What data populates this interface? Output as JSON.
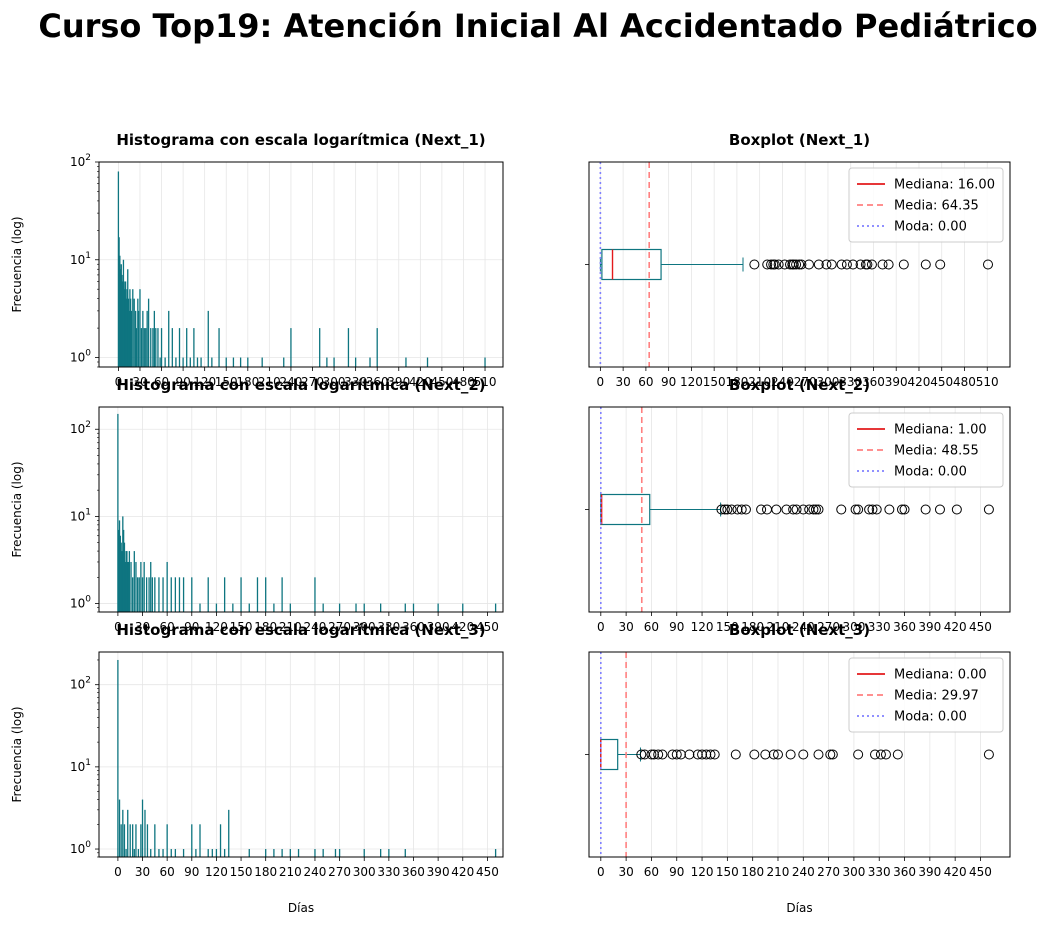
{
  "figure": {
    "title": "Curso Top19: Atención Inicial Al Accidentado Pediátrico"
  },
  "colors": {
    "bar": "#0e7580",
    "box": "#0e7580",
    "median": "#e31a1c",
    "mean": "#ff8080",
    "mode": "#8080ff",
    "grid": "#e6e6e6"
  },
  "chart_data": [
    {
      "type": "bar",
      "title": "Histograma con escala logarítmica (Next_1)",
      "xlabel": "",
      "ylabel": "Frecuencia (log)",
      "yscale": "log",
      "ylim": [
        0.8,
        100
      ],
      "yticks": [
        1,
        10,
        100
      ],
      "xlim": [
        -27,
        535
      ],
      "xticks": [
        0,
        30,
        60,
        90,
        120,
        150,
        180,
        210,
        240,
        270,
        300,
        330,
        360,
        390,
        420,
        450,
        480,
        510
      ],
      "grid": true,
      "bins": {
        "x": [
          0,
          1,
          2,
          3,
          4,
          5,
          6,
          7,
          8,
          9,
          10,
          11,
          12,
          13,
          14,
          15,
          16,
          17,
          18,
          20,
          22,
          24,
          25,
          27,
          28,
          30,
          32,
          34,
          36,
          38,
          40,
          42,
          45,
          48,
          50,
          52,
          55,
          58,
          60,
          65,
          70,
          75,
          80,
          85,
          90,
          95,
          100,
          105,
          110,
          115,
          125,
          130,
          140,
          150,
          160,
          170,
          180,
          200,
          230,
          240,
          280,
          290,
          300,
          320,
          330,
          350,
          360,
          400,
          430,
          510
        ],
        "values": [
          80,
          17,
          11,
          8,
          9,
          7,
          6,
          10,
          6,
          5,
          6,
          4,
          5,
          8,
          4,
          3,
          5,
          4,
          3,
          5,
          4,
          3,
          2,
          4,
          3,
          5,
          2,
          3,
          2,
          2,
          3,
          4,
          2,
          2,
          3,
          2,
          2,
          1,
          2,
          1,
          3,
          2,
          1,
          2,
          1,
          2,
          1,
          2,
          1,
          1,
          3,
          1,
          2,
          1,
          1,
          1,
          1,
          1,
          1,
          2,
          2,
          1,
          1,
          2,
          1,
          1,
          2,
          1,
          1,
          1
        ]
      }
    },
    {
      "type": "boxplot",
      "title": "Boxplot (Next_1)",
      "xlabel": "",
      "xlim": [
        -15,
        540
      ],
      "xticks": [
        0,
        30,
        60,
        90,
        120,
        150,
        180,
        210,
        240,
        270,
        300,
        330,
        360,
        390,
        420,
        450,
        480,
        510
      ],
      "grid": true,
      "legend_position": "top-right",
      "legend": [
        "Mediana: 16.00",
        "Media: 64.35",
        "Moda: 0.00"
      ],
      "median": 16,
      "mean": 64.35,
      "mode": 0,
      "q1": 2,
      "q3": 80,
      "whisker_low": 0,
      "whisker_high": 188,
      "outliers": [
        203,
        220,
        225,
        228,
        230,
        235,
        243,
        250,
        253,
        255,
        258,
        262,
        265,
        275,
        288,
        298,
        305,
        318,
        325,
        333,
        343,
        350,
        352,
        358,
        372,
        380,
        400,
        429,
        448,
        511
      ]
    },
    {
      "type": "bar",
      "title": "Histograma con escala logarítmica (Next_2)",
      "xlabel": "",
      "ylabel": "Frecuencia (log)",
      "yscale": "log",
      "ylim": [
        0.8,
        180
      ],
      "yticks": [
        1,
        10,
        100
      ],
      "xlim": [
        -23,
        469
      ],
      "xticks": [
        0,
        30,
        60,
        90,
        120,
        150,
        180,
        210,
        240,
        270,
        300,
        330,
        360,
        390,
        420,
        450
      ],
      "grid": true,
      "bins": {
        "x": [
          0,
          1,
          2,
          3,
          4,
          5,
          6,
          7,
          8,
          9,
          10,
          11,
          12,
          13,
          14,
          16,
          18,
          20,
          22,
          24,
          26,
          28,
          30,
          32,
          35,
          38,
          40,
          42,
          45,
          50,
          55,
          60,
          65,
          70,
          75,
          80,
          90,
          100,
          110,
          120,
          130,
          140,
          150,
          160,
          170,
          180,
          190,
          200,
          210,
          240,
          250,
          270,
          290,
          300,
          320,
          350,
          360,
          390,
          420,
          460
        ],
        "values": [
          150,
          7,
          9,
          6,
          5,
          4,
          10,
          7,
          5,
          3,
          4,
          4,
          3,
          3,
          4,
          3,
          2,
          4,
          3,
          2,
          2,
          3,
          2,
          3,
          2,
          2,
          3,
          2,
          2,
          2,
          2,
          3,
          2,
          2,
          2,
          2,
          2,
          1,
          2,
          1,
          2,
          1,
          2,
          1,
          2,
          2,
          1,
          2,
          1,
          2,
          1,
          1,
          1,
          1,
          1,
          1,
          1,
          1,
          1,
          1
        ]
      }
    },
    {
      "type": "boxplot",
      "title": "Boxplot (Next_2)",
      "xlabel": "",
      "xlim": [
        -14,
        485
      ],
      "xticks": [
        0,
        30,
        60,
        90,
        120,
        150,
        180,
        210,
        240,
        270,
        300,
        330,
        360,
        390,
        420,
        450
      ],
      "grid": true,
      "legend_position": "top-right",
      "legend": [
        "Mediana: 1.00",
        "Media: 48.55",
        "Moda: 0.00"
      ],
      "median": 1,
      "mean": 48.55,
      "mode": 0,
      "q1": 0,
      "q3": 58,
      "whisker_low": 0,
      "whisker_high": 142,
      "outliers": [
        143,
        147,
        150,
        155,
        162,
        167,
        172,
        190,
        197,
        208,
        220,
        228,
        232,
        240,
        247,
        252,
        255,
        258,
        285,
        302,
        305,
        318,
        322,
        327,
        342,
        357,
        360,
        385,
        402,
        422,
        460
      ]
    },
    {
      "type": "bar",
      "title": "Histograma con escala logarítmica (Next_3)",
      "xlabel": "Días",
      "ylabel": "Frecuencia (log)",
      "yscale": "log",
      "ylim": [
        0.8,
        250
      ],
      "yticks": [
        1,
        10,
        100
      ],
      "xlim": [
        -23,
        469
      ],
      "xticks": [
        0,
        30,
        60,
        90,
        120,
        150,
        180,
        210,
        240,
        270,
        300,
        330,
        360,
        390,
        420,
        450
      ],
      "grid": true,
      "bins": {
        "x": [
          0,
          2,
          4,
          6,
          8,
          10,
          12,
          15,
          18,
          20,
          22,
          25,
          28,
          30,
          33,
          36,
          40,
          45,
          50,
          55,
          60,
          65,
          70,
          80,
          90,
          95,
          100,
          110,
          115,
          120,
          125,
          130,
          135,
          160,
          180,
          190,
          200,
          210,
          220,
          240,
          250,
          265,
          270,
          300,
          320,
          330,
          350,
          460
        ],
        "values": [
          200,
          4,
          2,
          3,
          2,
          1,
          3,
          2,
          2,
          1,
          2,
          1,
          2,
          4,
          3,
          2,
          1,
          2,
          1,
          1,
          2,
          1,
          1,
          1,
          2,
          1,
          2,
          1,
          1,
          1,
          2,
          1,
          3,
          1,
          1,
          1,
          1,
          1,
          1,
          1,
          1,
          1,
          1,
          1,
          1,
          1,
          1,
          1
        ]
      }
    },
    {
      "type": "boxplot",
      "title": "Boxplot (Next_3)",
      "xlabel": "Días",
      "xlim": [
        -14,
        485
      ],
      "xticks": [
        0,
        30,
        60,
        90,
        120,
        150,
        180,
        210,
        240,
        270,
        300,
        330,
        360,
        390,
        420,
        450
      ],
      "grid": true,
      "legend_position": "top-right",
      "legend": [
        "Mediana: 0.00",
        "Media: 29.97",
        "Moda: 0.00"
      ],
      "median": 0,
      "mean": 29.97,
      "mode": 0,
      "q1": 0,
      "q3": 20,
      "whisker_low": 0,
      "whisker_high": 47,
      "outliers": [
        48,
        52,
        60,
        63,
        68,
        73,
        85,
        90,
        95,
        105,
        115,
        120,
        125,
        130,
        135,
        160,
        182,
        195,
        205,
        210,
        225,
        240,
        258,
        272,
        275,
        305,
        325,
        332,
        338,
        352,
        460
      ]
    }
  ]
}
